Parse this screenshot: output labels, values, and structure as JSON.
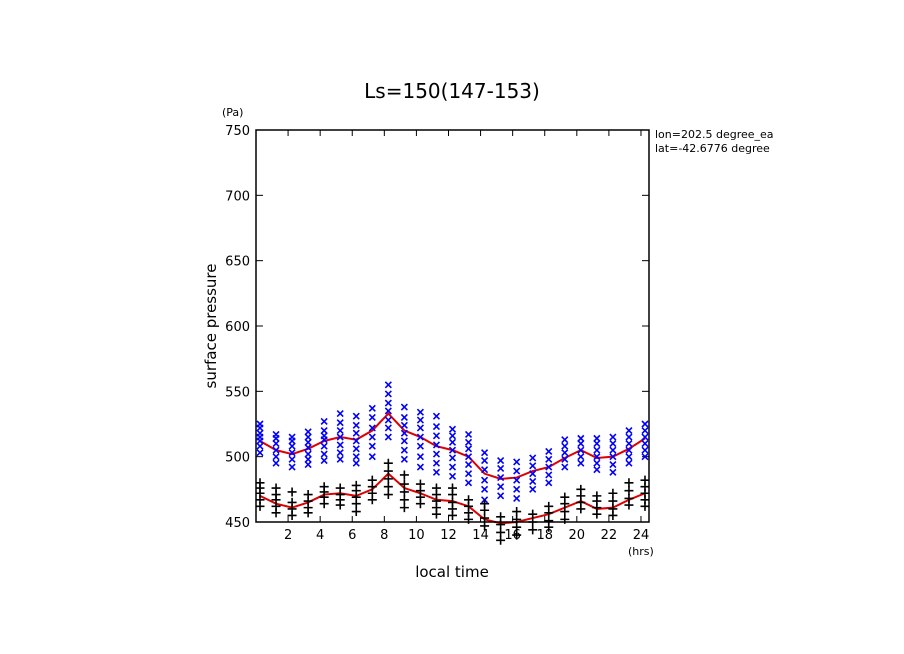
{
  "chart_data": {
    "type": "scatter",
    "title": "Ls=150(147-153)",
    "xlabel": "local time",
    "ylabel": "surface pressure",
    "x_unit": "(hrs)",
    "y_unit": "(Pa)",
    "xlim": [
      0,
      24.5
    ],
    "ylim": [
      450,
      750
    ],
    "x_ticks": [
      2,
      4,
      6,
      8,
      10,
      12,
      14,
      16,
      18,
      20,
      22,
      24
    ],
    "y_ticks": [
      450,
      500,
      550,
      600,
      650,
      700,
      750
    ],
    "annotations": [
      "lon=202.5 degree_ea",
      "lat=-42.6776 degree"
    ],
    "colors": {
      "blue_series": "#0000ff",
      "black_series": "#000000",
      "fit_lines": "#dd0000"
    },
    "series": [
      {
        "marker": "x",
        "color": "#0000ff",
        "points": [
          [
            0.25,
            503
          ],
          [
            0.25,
            508
          ],
          [
            0.25,
            512
          ],
          [
            0.25,
            515
          ],
          [
            0.25,
            518
          ],
          [
            0.25,
            522
          ],
          [
            0.25,
            525
          ],
          [
            1.25,
            495
          ],
          [
            1.25,
            500
          ],
          [
            1.25,
            505
          ],
          [
            1.25,
            510
          ],
          [
            1.25,
            514
          ],
          [
            1.25,
            517
          ],
          [
            2.25,
            492
          ],
          [
            2.25,
            498
          ],
          [
            2.25,
            503
          ],
          [
            2.25,
            508
          ],
          [
            2.25,
            512
          ],
          [
            2.25,
            515
          ],
          [
            3.25,
            494
          ],
          [
            3.25,
            498
          ],
          [
            3.25,
            502
          ],
          [
            3.25,
            507
          ],
          [
            3.25,
            511
          ],
          [
            3.25,
            515
          ],
          [
            3.25,
            519
          ],
          [
            4.25,
            497
          ],
          [
            4.25,
            502
          ],
          [
            4.25,
            508
          ],
          [
            4.25,
            513
          ],
          [
            4.25,
            516
          ],
          [
            4.25,
            520
          ],
          [
            4.25,
            527
          ],
          [
            5.25,
            498
          ],
          [
            5.25,
            503
          ],
          [
            5.25,
            509
          ],
          [
            5.25,
            515
          ],
          [
            5.25,
            520
          ],
          [
            5.25,
            526
          ],
          [
            5.25,
            533
          ],
          [
            6.25,
            495
          ],
          [
            6.25,
            500
          ],
          [
            6.25,
            506
          ],
          [
            6.25,
            512
          ],
          [
            6.25,
            518
          ],
          [
            6.25,
            524
          ],
          [
            6.25,
            531
          ],
          [
            7.25,
            500
          ],
          [
            7.25,
            508
          ],
          [
            7.25,
            515
          ],
          [
            7.25,
            522
          ],
          [
            7.25,
            530
          ],
          [
            7.25,
            537
          ],
          [
            8.25,
            515
          ],
          [
            8.25,
            522
          ],
          [
            8.25,
            528
          ],
          [
            8.25,
            535
          ],
          [
            8.25,
            541
          ],
          [
            8.25,
            548
          ],
          [
            8.25,
            555
          ],
          [
            9.25,
            498
          ],
          [
            9.25,
            505
          ],
          [
            9.25,
            512
          ],
          [
            9.25,
            518
          ],
          [
            9.25,
            524
          ],
          [
            9.25,
            530
          ],
          [
            9.25,
            538
          ],
          [
            10.25,
            492
          ],
          [
            10.25,
            500
          ],
          [
            10.25,
            508
          ],
          [
            10.25,
            515
          ],
          [
            10.25,
            522
          ],
          [
            10.25,
            528
          ],
          [
            10.25,
            534
          ],
          [
            11.25,
            488
          ],
          [
            11.25,
            495
          ],
          [
            11.25,
            502
          ],
          [
            11.25,
            509
          ],
          [
            11.25,
            516
          ],
          [
            11.25,
            523
          ],
          [
            11.25,
            531
          ],
          [
            12.25,
            485
          ],
          [
            12.25,
            492
          ],
          [
            12.25,
            499
          ],
          [
            12.25,
            505
          ],
          [
            12.25,
            511
          ],
          [
            12.25,
            516
          ],
          [
            12.25,
            521
          ],
          [
            13.25,
            480
          ],
          [
            13.25,
            487
          ],
          [
            13.25,
            494
          ],
          [
            13.25,
            500
          ],
          [
            13.25,
            506
          ],
          [
            13.25,
            511
          ],
          [
            13.25,
            517
          ],
          [
            14.25,
            467
          ],
          [
            14.25,
            475
          ],
          [
            14.25,
            482
          ],
          [
            14.25,
            490
          ],
          [
            14.25,
            497
          ],
          [
            14.25,
            503
          ],
          [
            15.25,
            470
          ],
          [
            15.25,
            477
          ],
          [
            15.25,
            484
          ],
          [
            15.25,
            491
          ],
          [
            15.25,
            497
          ],
          [
            16.25,
            468
          ],
          [
            16.25,
            475
          ],
          [
            16.25,
            482
          ],
          [
            16.25,
            489
          ],
          [
            16.25,
            496
          ],
          [
            17.25,
            475
          ],
          [
            17.25,
            481
          ],
          [
            17.25,
            487
          ],
          [
            17.25,
            493
          ],
          [
            17.25,
            499
          ],
          [
            18.25,
            480
          ],
          [
            18.25,
            486
          ],
          [
            18.25,
            492
          ],
          [
            18.25,
            498
          ],
          [
            18.25,
            504
          ],
          [
            19.25,
            492
          ],
          [
            19.25,
            498
          ],
          [
            19.25,
            503
          ],
          [
            19.25,
            508
          ],
          [
            19.25,
            513
          ],
          [
            20.25,
            495
          ],
          [
            20.25,
            500
          ],
          [
            20.25,
            505
          ],
          [
            20.25,
            510
          ],
          [
            20.25,
            514
          ],
          [
            21.25,
            490
          ],
          [
            21.25,
            495
          ],
          [
            21.25,
            500
          ],
          [
            21.25,
            505
          ],
          [
            21.25,
            510
          ],
          [
            21.25,
            514
          ],
          [
            22.25,
            488
          ],
          [
            22.25,
            494
          ],
          [
            22.25,
            500
          ],
          [
            22.25,
            505
          ],
          [
            22.25,
            510
          ],
          [
            22.25,
            515
          ],
          [
            23.25,
            495
          ],
          [
            23.25,
            500
          ],
          [
            23.25,
            505
          ],
          [
            23.25,
            510
          ],
          [
            23.25,
            515
          ],
          [
            23.25,
            520
          ],
          [
            24.25,
            500
          ],
          [
            24.25,
            505
          ],
          [
            24.25,
            510
          ],
          [
            24.25,
            515
          ],
          [
            24.25,
            520
          ],
          [
            24.25,
            525
          ]
        ]
      },
      {
        "marker": "+",
        "color": "#000000",
        "points": [
          [
            0.25,
            462
          ],
          [
            0.25,
            467
          ],
          [
            0.25,
            472
          ],
          [
            0.25,
            476
          ],
          [
            0.25,
            480
          ],
          [
            1.25,
            457
          ],
          [
            1.25,
            462
          ],
          [
            1.25,
            467
          ],
          [
            1.25,
            471
          ],
          [
            1.25,
            476
          ],
          [
            2.25,
            455
          ],
          [
            2.25,
            460
          ],
          [
            2.25,
            465
          ],
          [
            2.25,
            473
          ],
          [
            3.25,
            457
          ],
          [
            3.25,
            461
          ],
          [
            3.25,
            466
          ],
          [
            3.25,
            471
          ],
          [
            4.25,
            464
          ],
          [
            4.25,
            469
          ],
          [
            4.25,
            473
          ],
          [
            4.25,
            477
          ],
          [
            5.25,
            463
          ],
          [
            5.25,
            467
          ],
          [
            5.25,
            471
          ],
          [
            5.25,
            476
          ],
          [
            6.25,
            458
          ],
          [
            6.25,
            464
          ],
          [
            6.25,
            469
          ],
          [
            6.25,
            474
          ],
          [
            6.25,
            478
          ],
          [
            7.25,
            467
          ],
          [
            7.25,
            472
          ],
          [
            7.25,
            477
          ],
          [
            7.25,
            482
          ],
          [
            8.25,
            471
          ],
          [
            8.25,
            477
          ],
          [
            8.25,
            483
          ],
          [
            8.25,
            489
          ],
          [
            8.25,
            495
          ],
          [
            9.25,
            461
          ],
          [
            9.25,
            467
          ],
          [
            9.25,
            473
          ],
          [
            9.25,
            479
          ],
          [
            9.25,
            486
          ],
          [
            10.25,
            464
          ],
          [
            10.25,
            469
          ],
          [
            10.25,
            474
          ],
          [
            10.25,
            479
          ],
          [
            11.25,
            456
          ],
          [
            11.25,
            461
          ],
          [
            11.25,
            466
          ],
          [
            11.25,
            471
          ],
          [
            11.25,
            476
          ],
          [
            12.25,
            455
          ],
          [
            12.25,
            460
          ],
          [
            12.25,
            465
          ],
          [
            12.25,
            471
          ],
          [
            12.25,
            476
          ],
          [
            13.25,
            452
          ],
          [
            13.25,
            457
          ],
          [
            13.25,
            462
          ],
          [
            13.25,
            467
          ],
          [
            14.25,
            447
          ],
          [
            14.25,
            453
          ],
          [
            14.25,
            459
          ],
          [
            14.25,
            464
          ],
          [
            15.25,
            436
          ],
          [
            15.25,
            442
          ],
          [
            15.25,
            448
          ],
          [
            15.25,
            454
          ],
          [
            16.25,
            440
          ],
          [
            16.25,
            446
          ],
          [
            16.25,
            452
          ],
          [
            16.25,
            458
          ],
          [
            17.25,
            444
          ],
          [
            17.25,
            450
          ],
          [
            17.25,
            456
          ],
          [
            18.25,
            446
          ],
          [
            18.25,
            451
          ],
          [
            18.25,
            457
          ],
          [
            18.25,
            462
          ],
          [
            19.25,
            452
          ],
          [
            19.25,
            458
          ],
          [
            19.25,
            464
          ],
          [
            19.25,
            469
          ],
          [
            20.25,
            460
          ],
          [
            20.25,
            465
          ],
          [
            20.25,
            470
          ],
          [
            20.25,
            475
          ],
          [
            21.25,
            456
          ],
          [
            21.25,
            461
          ],
          [
            21.25,
            466
          ],
          [
            21.25,
            470
          ],
          [
            22.25,
            455
          ],
          [
            22.25,
            460
          ],
          [
            22.25,
            466
          ],
          [
            22.25,
            472
          ],
          [
            23.25,
            463
          ],
          [
            23.25,
            468
          ],
          [
            23.25,
            474
          ],
          [
            23.25,
            480
          ],
          [
            24.25,
            462
          ],
          [
            24.25,
            467
          ],
          [
            24.25,
            472
          ],
          [
            24.25,
            477
          ],
          [
            24.25,
            482
          ]
        ]
      },
      {
        "type": "line",
        "color": "#dd0000",
        "x": [
          0.25,
          1.25,
          2.25,
          3.25,
          4.25,
          5.25,
          6.25,
          7.25,
          8.25,
          9.25,
          10.25,
          11.25,
          12.25,
          13.25,
          14.25,
          15.25,
          16.25,
          17.25,
          18.25,
          19.25,
          20.25,
          21.25,
          22.25,
          23.25,
          24.25
        ],
        "values": [
          512,
          505,
          502,
          506,
          512,
          515,
          513,
          520,
          533,
          520,
          515,
          508,
          505,
          500,
          487,
          483,
          484,
          489,
          492,
          499,
          505,
          499,
          500,
          506,
          514
        ]
      },
      {
        "type": "line",
        "color": "#dd0000",
        "x": [
          0.25,
          1.25,
          2.25,
          3.25,
          4.25,
          5.25,
          6.25,
          7.25,
          8.25,
          9.25,
          10.25,
          11.25,
          12.25,
          13.25,
          14.25,
          15.25,
          16.25,
          17.25,
          18.25,
          19.25,
          20.25,
          21.25,
          22.25,
          23.25,
          24.25
        ],
        "values": [
          470,
          464,
          461,
          465,
          471,
          472,
          470,
          475,
          487,
          476,
          472,
          467,
          466,
          462,
          452,
          449,
          450,
          453,
          456,
          461,
          466,
          460,
          461,
          467,
          472
        ]
      }
    ]
  }
}
